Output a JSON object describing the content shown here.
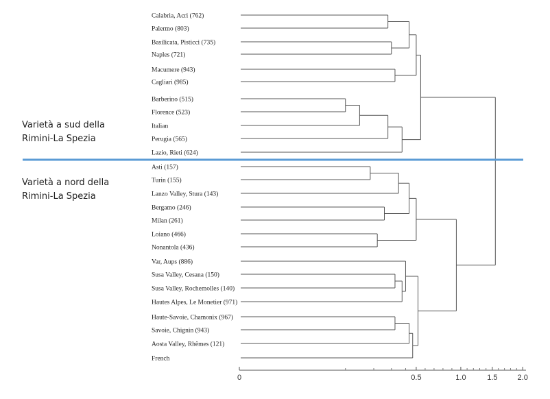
{
  "chart_data": {
    "type": "dendrogram",
    "title": "",
    "xlabel": "",
    "ylabel": "",
    "axis": {
      "ticks": [
        0,
        0.5,
        1.0,
        1.5,
        2.0
      ],
      "tick_labels": [
        "0",
        "0.5",
        "1.0",
        "1.5",
        "2.0"
      ],
      "scale_anchors": [
        [
          0,
          0
        ],
        [
          0.5,
          0.623
        ],
        [
          1.0,
          0.78
        ],
        [
          1.5,
          0.891
        ],
        [
          2.0,
          0.998
        ]
      ],
      "minor_ticks": [
        0.3,
        0.38,
        0.43,
        0.47,
        0.6,
        0.7,
        0.8,
        0.9,
        1.1,
        1.2,
        1.3,
        1.4,
        1.6,
        1.7,
        1.8,
        1.9
      ]
    },
    "leaves": [
      "Calabria, Acri (762)",
      "Palermo (803)",
      "Basilicata, Pisticci (735)",
      "Naples (721)",
      "Macumere (943)",
      "Cagliari (985)",
      "Barberino (515)",
      "Florence (523)",
      "Italian",
      "Perugia (565)",
      "Lazio, Rieti (624)",
      "Asti (157)",
      "Turin (155)",
      "Lanzo Valley, Stura (143)",
      "Bergamo (246)",
      "Milan (261)",
      "Loiano (466)",
      "Nonantola (436)",
      "Var, Aups (886)",
      "Susa Valley, Cesana (150)",
      "Susa Valley, Rochemolles (140)",
      "Hautes Alpes, Le Monetier (971)",
      "Haute-Savoie, Chamonix (967)",
      "Savoie, Chignin (943)",
      "Aosta Valley, Rhêmes (121)",
      "French"
    ],
    "merges": [
      {
        "id": "m1",
        "children": [
          0,
          1
        ],
        "height": 0.42
      },
      {
        "id": "m2",
        "children": [
          2,
          3
        ],
        "height": 0.43
      },
      {
        "id": "m3",
        "children": [
          "m1",
          "m2"
        ],
        "height": 0.48
      },
      {
        "id": "m4",
        "children": [
          4,
          5
        ],
        "height": 0.44
      },
      {
        "id": "m5",
        "children": [
          "m3",
          "m4"
        ],
        "height": 0.5
      },
      {
        "id": "m6",
        "children": [
          6,
          7
        ],
        "height": 0.3
      },
      {
        "id": "m7",
        "children": [
          "m6",
          8
        ],
        "height": 0.34
      },
      {
        "id": "m8",
        "children": [
          "m7",
          9
        ],
        "height": 0.42
      },
      {
        "id": "m9",
        "children": [
          "m8",
          10
        ],
        "height": 0.46
      },
      {
        "id": "m10",
        "children": [
          "m5",
          "m9"
        ],
        "height": 0.55
      },
      {
        "id": "m11",
        "children": [
          11,
          12
        ],
        "height": 0.37
      },
      {
        "id": "m12",
        "children": [
          "m11",
          13
        ],
        "height": 0.45
      },
      {
        "id": "m13",
        "children": [
          14,
          15
        ],
        "height": 0.41
      },
      {
        "id": "m14",
        "children": [
          "m12",
          "m13"
        ],
        "height": 0.48
      },
      {
        "id": "m15",
        "children": [
          16,
          17
        ],
        "height": 0.39
      },
      {
        "id": "m16",
        "children": [
          "m14",
          "m15"
        ],
        "height": 0.5
      },
      {
        "id": "m17",
        "children": [
          19,
          20
        ],
        "height": 0.44
      },
      {
        "id": "m18",
        "children": [
          "m17",
          21
        ],
        "height": 0.46
      },
      {
        "id": "m19",
        "children": [
          18,
          "m18"
        ],
        "height": 0.47
      },
      {
        "id": "m20",
        "children": [
          22,
          23
        ],
        "height": 0.44
      },
      {
        "id": "m21",
        "children": [
          "m20",
          24
        ],
        "height": 0.48
      },
      {
        "id": "m22",
        "children": [
          "m21",
          25
        ],
        "height": 0.49
      },
      {
        "id": "m23",
        "children": [
          "m19",
          "m22"
        ],
        "height": 0.52
      },
      {
        "id": "m24",
        "children": [
          "m16",
          "m23"
        ],
        "height": 0.95
      },
      {
        "id": "root",
        "children": [
          "m10",
          "m24"
        ],
        "height": 1.55
      }
    ],
    "annotations": [
      {
        "text_lines": [
          "Varietà a sud della",
          "Rimini-La Spezia"
        ],
        "region": "south"
      },
      {
        "text_lines": [
          "Varietà a nord della",
          "Rimini-La Spezia"
        ],
        "region": "north"
      }
    ],
    "divider_color": "#5b9bd5",
    "line_color": "#555555"
  }
}
